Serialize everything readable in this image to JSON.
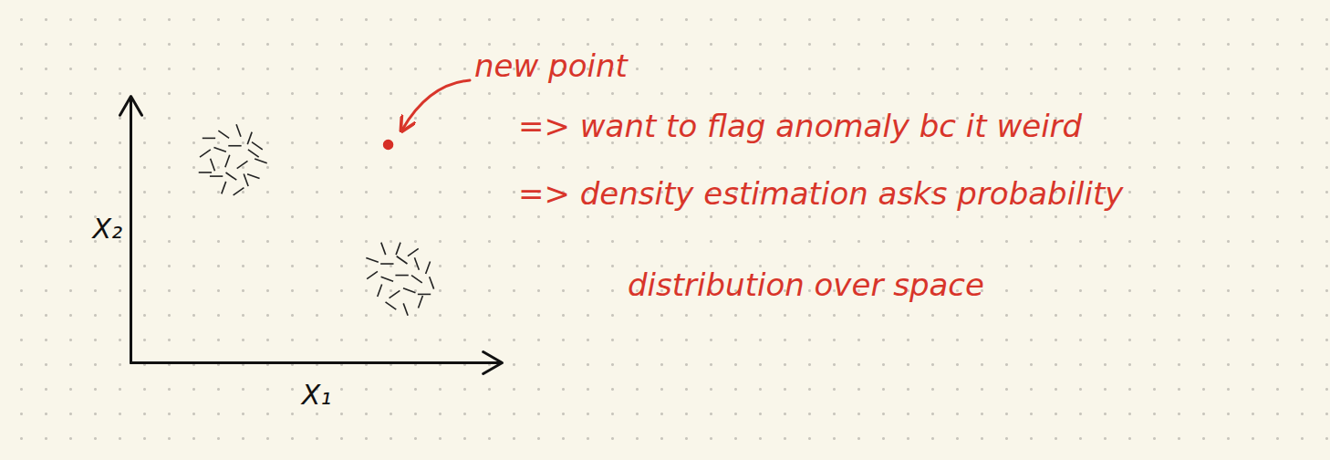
{
  "chart_data": {
    "type": "scatter",
    "x_label": "X₁",
    "y_label": "X₂",
    "xlim": [
      0,
      10
    ],
    "ylim": [
      0,
      7
    ],
    "xticks": [],
    "yticks": [],
    "tick_labels": false,
    "grid": false,
    "series": [
      {
        "color": "#222222",
        "marker": "dash",
        "x": [
          2.1,
          2.5,
          2.9,
          3.2,
          2.0,
          2.4,
          2.8,
          3.3,
          2.2,
          2.6,
          3.0,
          3.5,
          2.3,
          2.7,
          3.1,
          2.5,
          2.9,
          3.3,
          2.0,
          3.4
        ],
        "values": [
          5.9,
          6.0,
          6.1,
          5.9,
          5.5,
          5.6,
          5.7,
          5.5,
          5.2,
          5.3,
          5.2,
          5.3,
          4.9,
          4.9,
          4.8,
          4.6,
          4.5,
          4.9,
          5.0,
          5.7
        ]
      },
      {
        "color": "#222222",
        "marker": "dash",
        "x": [
          6.8,
          7.2,
          7.6,
          6.5,
          6.9,
          7.3,
          7.7,
          8.0,
          6.5,
          6.9,
          7.3,
          7.7,
          8.1,
          6.7,
          7.1,
          7.5,
          7.9,
          7.0,
          7.4,
          7.8
        ],
        "values": [
          3.0,
          3.0,
          2.9,
          2.7,
          2.6,
          2.7,
          2.6,
          2.5,
          2.3,
          2.2,
          2.3,
          2.2,
          2.1,
          1.9,
          1.8,
          1.9,
          1.8,
          1.5,
          1.4,
          1.6
        ]
      },
      {
        "color": "#d62f26",
        "marker": "dot",
        "x": [
          6.93
        ],
        "values": [
          5.73
        ]
      }
    ],
    "annotations": [
      "new point",
      "=> want to flag anomaly bc it weird",
      "=> density estimation asks probability",
      "distribution over space"
    ]
  }
}
